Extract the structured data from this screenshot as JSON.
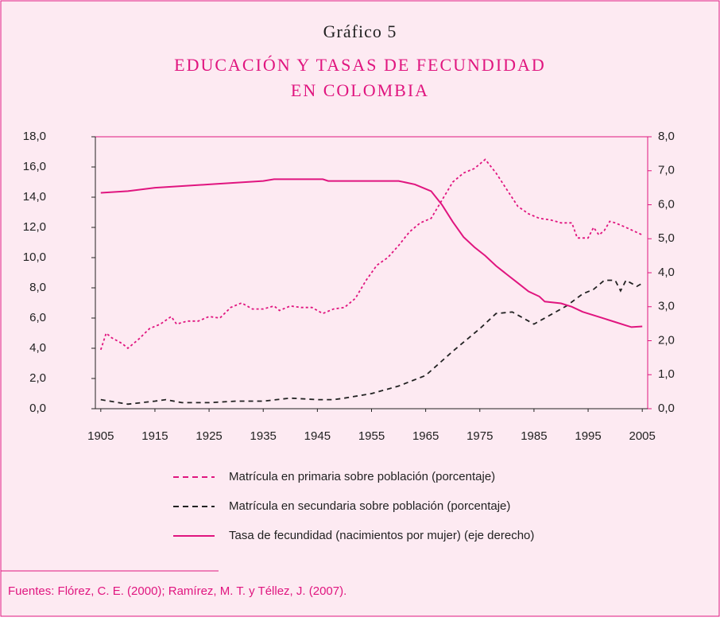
{
  "chart_data": {
    "type": "line",
    "title": "Gráfico 5",
    "subtitle": [
      "EDUCACIÓN Y TASAS DE FECUNDIDAD",
      "EN COLOMBIA"
    ],
    "source": "Fuentes: Flórez, C. E. (2000);  Ramírez, M. T. y Téllez, J. (2007).",
    "xlim": [
      1904,
      2006
    ],
    "xticks": [
      1905,
      1915,
      1925,
      1935,
      1945,
      1955,
      1965,
      1975,
      1985,
      1995,
      2005
    ],
    "ylim": [
      0,
      18
    ],
    "yticks": [
      {
        "value": 0,
        "label": "0,0"
      },
      {
        "value": 2,
        "label": "2,0"
      },
      {
        "value": 4,
        "label": "4,0"
      },
      {
        "value": 6,
        "label": "6,0"
      },
      {
        "value": 8,
        "label": "8,0"
      },
      {
        "value": 10,
        "label": "10,0"
      },
      {
        "value": 12,
        "label": "12,0"
      },
      {
        "value": 14,
        "label": "14,0"
      },
      {
        "value": 16,
        "label": "16,0"
      },
      {
        "value": 18,
        "label": "18,0"
      }
    ],
    "y2lim": [
      0,
      8
    ],
    "y2ticks": [
      {
        "value": 0,
        "label": "0,0"
      },
      {
        "value": 1,
        "label": "1,0"
      },
      {
        "value": 2,
        "label": "2,0"
      },
      {
        "value": 3,
        "label": "3,0"
      },
      {
        "value": 4,
        "label": "4,0"
      },
      {
        "value": 5,
        "label": "5,0"
      },
      {
        "value": 6,
        "label": "6,0"
      },
      {
        "value": 7,
        "label": "7,0"
      },
      {
        "value": 8,
        "label": "8,0"
      }
    ],
    "series": [
      {
        "name": "Matrícula en primaria sobre población (porcentaje)",
        "color": "#e0157f",
        "dash": "dotted",
        "x": [
          1905,
          1906,
          1907,
          1908,
          1909,
          1910,
          1912,
          1914,
          1916,
          1918,
          1919,
          1921,
          1923,
          1925,
          1927,
          1929,
          1931,
          1933,
          1935,
          1937,
          1938,
          1940,
          1942,
          1944,
          1946,
          1948,
          1950,
          1952,
          1954,
          1956,
          1958,
          1960,
          1962,
          1964,
          1966,
          1968,
          1970,
          1972,
          1974,
          1976,
          1978,
          1980,
          1982,
          1984,
          1986,
          1988,
          1990,
          1992,
          1993,
          1995,
          1996,
          1997,
          1998,
          1999,
          2000,
          2002,
          2005
        ],
        "values": [
          3.9,
          5.0,
          4.7,
          4.5,
          4.3,
          4.0,
          4.6,
          5.3,
          5.6,
          6.1,
          5.6,
          5.8,
          5.8,
          6.1,
          6.0,
          6.7,
          7.0,
          6.6,
          6.6,
          6.8,
          6.5,
          6.8,
          6.7,
          6.7,
          6.3,
          6.6,
          6.7,
          7.3,
          8.5,
          9.5,
          10.0,
          10.8,
          11.7,
          12.3,
          12.6,
          13.8,
          15.0,
          15.6,
          15.9,
          16.5,
          15.6,
          14.5,
          13.4,
          12.9,
          12.6,
          12.5,
          12.3,
          12.3,
          11.3,
          11.3,
          12.0,
          11.5,
          11.8,
          12.4,
          12.3,
          12.0,
          11.5
        ]
      },
      {
        "name": "Matrícula en secundaria sobre población (porcentaje)",
        "color": "#222222",
        "dash": "dashed",
        "x": [
          1905,
          1910,
          1915,
          1917,
          1920,
          1925,
          1930,
          1935,
          1940,
          1945,
          1948,
          1950,
          1955,
          1960,
          1965,
          1970,
          1975,
          1978,
          1981,
          1983,
          1985,
          1988,
          1991,
          1994,
          1996,
          1998,
          2000,
          2001,
          2002,
          2004,
          2005
        ],
        "values": [
          0.6,
          0.3,
          0.5,
          0.6,
          0.4,
          0.4,
          0.5,
          0.5,
          0.7,
          0.6,
          0.6,
          0.7,
          1.0,
          1.5,
          2.2,
          3.8,
          5.3,
          6.3,
          6.4,
          6.0,
          5.6,
          6.2,
          6.8,
          7.6,
          7.9,
          8.5,
          8.5,
          7.8,
          8.5,
          8.1,
          8.3
        ]
      },
      {
        "name": "Tasa de fecundidad (nacimientos por mujer) (eje derecho)",
        "color": "#e0157f",
        "dash": "solid",
        "axis": "y2",
        "x": [
          1905,
          1910,
          1915,
          1920,
          1925,
          1930,
          1935,
          1937,
          1946,
          1947,
          1960,
          1963,
          1966,
          1968,
          1970,
          1972,
          1974,
          1976,
          1978,
          1980,
          1982,
          1984,
          1986,
          1987,
          1990,
          1992,
          1994,
          1995,
          1997,
          1998,
          2000,
          2002,
          2003,
          2005
        ],
        "values": [
          6.35,
          6.4,
          6.5,
          6.55,
          6.6,
          6.65,
          6.7,
          6.75,
          6.75,
          6.7,
          6.7,
          6.6,
          6.4,
          6.0,
          5.5,
          5.05,
          4.75,
          4.5,
          4.2,
          3.95,
          3.7,
          3.45,
          3.3,
          3.15,
          3.1,
          3.0,
          2.85,
          2.8,
          2.7,
          2.65,
          2.55,
          2.45,
          2.4,
          2.42
        ]
      }
    ]
  }
}
